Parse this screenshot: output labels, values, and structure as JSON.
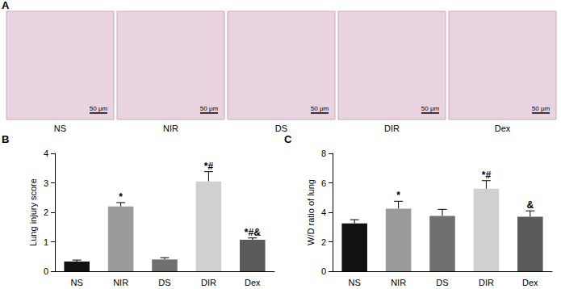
{
  "panel_a": {
    "panel_label": "A",
    "images": [
      {
        "label": "NS",
        "scale_bar": "50 μm"
      },
      {
        "label": "NIR",
        "scale_bar": "50 μm"
      },
      {
        "label": "DS",
        "scale_bar": "50 μm"
      },
      {
        "label": "DIR",
        "scale_bar": "50 μm"
      },
      {
        "label": "Dex",
        "scale_bar": "50 μm"
      }
    ]
  },
  "chart_data": [
    {
      "panel_label": "B",
      "type": "bar",
      "y_label": "Lung injury score",
      "categories": [
        "NS",
        "NIR",
        "DS",
        "DIR",
        "Dex"
      ],
      "values": [
        0.33,
        2.2,
        0.4,
        3.05,
        1.07
      ],
      "errors": [
        0.05,
        0.13,
        0.06,
        0.33,
        0.06
      ],
      "annotations": [
        null,
        "*",
        null,
        "*#",
        "*#&"
      ],
      "colors": [
        "#111111",
        "#9a9a9a",
        "#707070",
        "#d0d0d0",
        "#5a5a5a"
      ],
      "ylim": [
        0,
        4
      ],
      "yticks": [
        0,
        1,
        2,
        3,
        4
      ],
      "grid": false
    },
    {
      "panel_label": "C",
      "type": "bar",
      "y_label": "W/D ratio of lung",
      "categories": [
        "NS",
        "NIR",
        "DS",
        "DIR",
        "Dex"
      ],
      "values": [
        3.25,
        4.25,
        3.75,
        5.6,
        3.7
      ],
      "errors": [
        0.25,
        0.5,
        0.45,
        0.55,
        0.4
      ],
      "annotations": [
        null,
        "*",
        null,
        "*#",
        "&"
      ],
      "colors": [
        "#111111",
        "#9a9a9a",
        "#707070",
        "#d0d0d0",
        "#5a5a5a"
      ],
      "ylim": [
        0,
        8
      ],
      "yticks": [
        0,
        2,
        4,
        6,
        8
      ],
      "grid": false
    }
  ]
}
